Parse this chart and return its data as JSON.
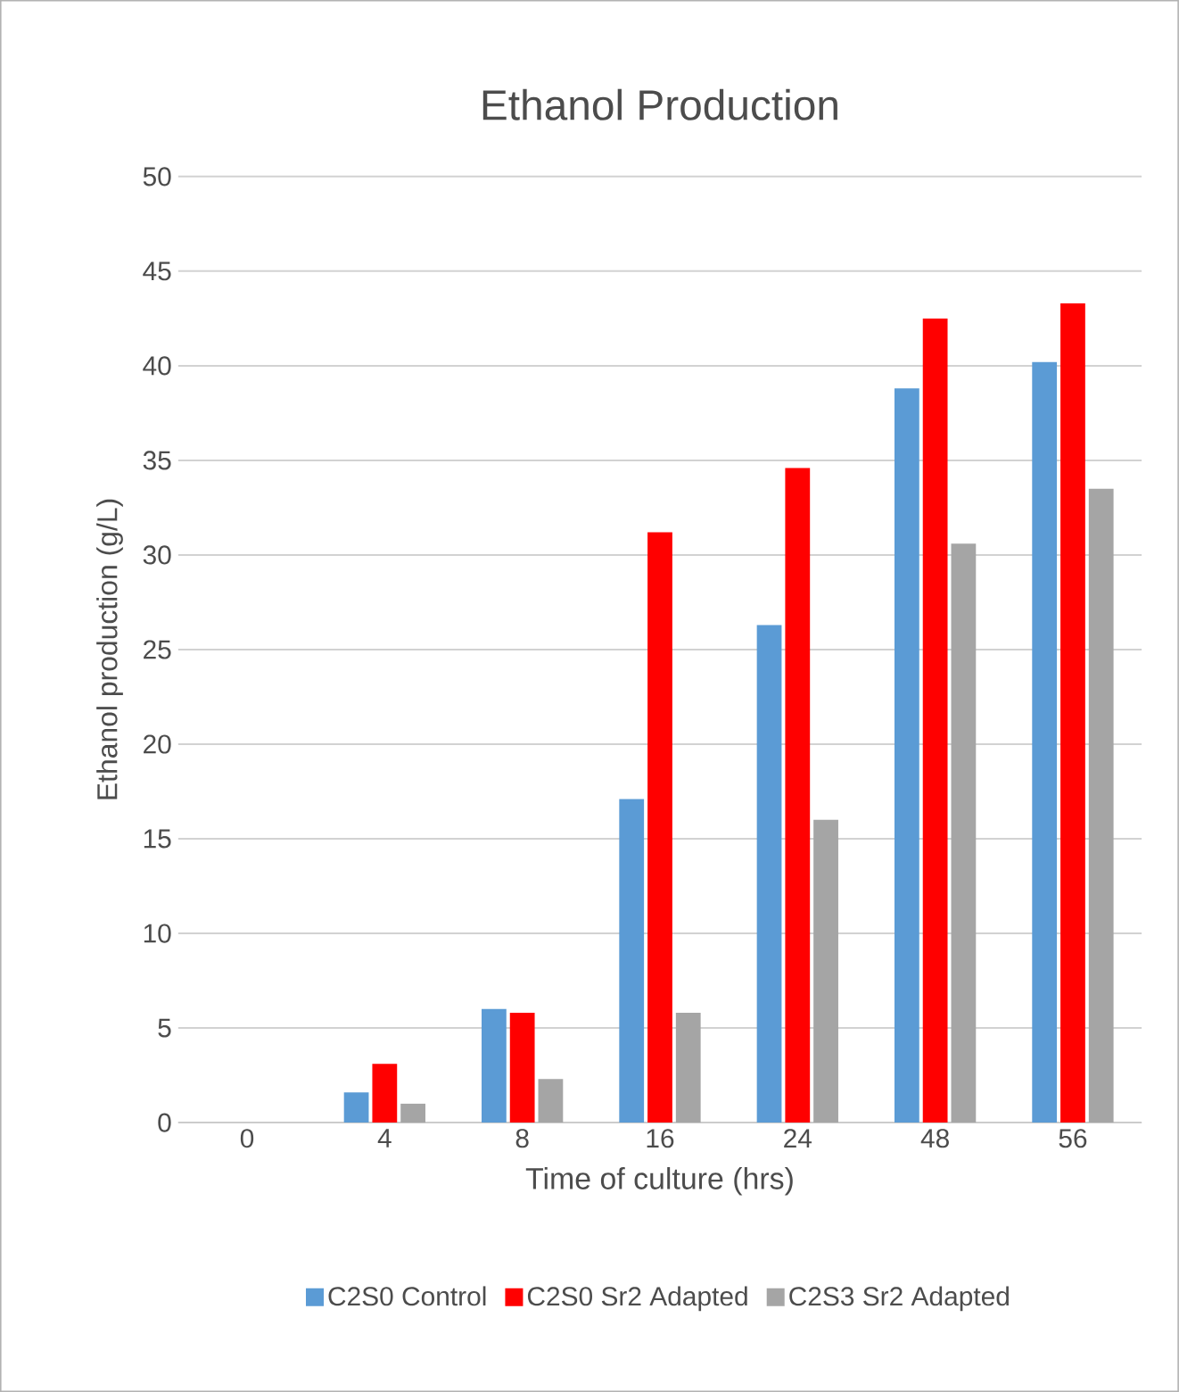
{
  "chart_data": {
    "type": "bar",
    "title": "Ethanol Production",
    "xlabel": "Time of culture (hrs)",
    "ylabel": "Ethanol production  (g/L)",
    "categories": [
      "0",
      "4",
      "8",
      "16",
      "24",
      "48",
      "56"
    ],
    "series": [
      {
        "name": "C2S0 Control",
        "color": "#5b9bd5",
        "values": [
          0,
          1.6,
          6.0,
          17.1,
          26.3,
          38.8,
          40.2
        ]
      },
      {
        "name": "C2S0 Sr2 Adapted",
        "color": "#ff0000",
        "values": [
          0,
          3.1,
          5.8,
          31.2,
          34.6,
          42.5,
          43.3
        ]
      },
      {
        "name": "C2S3 Sr2 Adapted",
        "color": "#a5a5a5",
        "values": [
          0,
          1.0,
          2.3,
          5.8,
          16.0,
          30.6,
          33.5
        ]
      }
    ],
    "ylim": [
      0,
      50
    ],
    "yticks": [
      0,
      5,
      10,
      15,
      20,
      25,
      30,
      35,
      40,
      45,
      50
    ],
    "grid": "y",
    "legend": "bottom"
  }
}
